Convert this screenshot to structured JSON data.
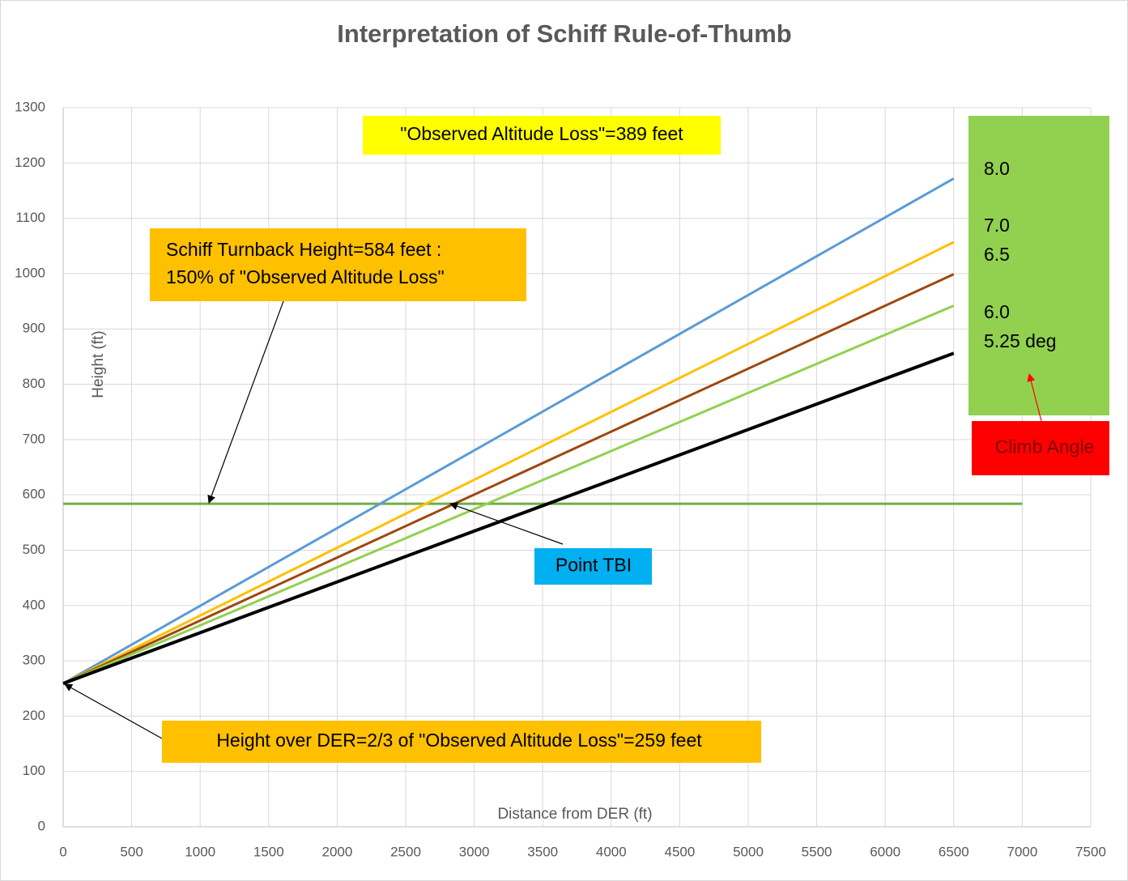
{
  "chart_data": {
    "type": "line",
    "title": "Interpretation of Schiff Rule-of-Thumb",
    "xlabel": "Distance from DER (ft)",
    "ylabel": "Height  (ft)",
    "xlim": [
      0,
      7500
    ],
    "ylim": [
      0,
      1300
    ],
    "xticks": [
      0,
      500,
      1000,
      1500,
      2000,
      2500,
      3000,
      3500,
      4000,
      4500,
      5000,
      5500,
      6000,
      6500,
      7000,
      7500
    ],
    "yticks": [
      0,
      100,
      200,
      300,
      400,
      500,
      600,
      700,
      800,
      900,
      1000,
      1100,
      1200,
      1300
    ],
    "grid": true,
    "legend_color": "#92d050",
    "series": [
      {
        "name": "8.0",
        "color": "#5b9bd5",
        "x": [
          0,
          6500
        ],
        "values": [
          259,
          1172
        ]
      },
      {
        "name": "7.0",
        "color": "#ffc000",
        "x": [
          0,
          6500
        ],
        "values": [
          259,
          1057
        ]
      },
      {
        "name": "6.5",
        "color": "#9e480e",
        "x": [
          0,
          6500
        ],
        "values": [
          259,
          999
        ]
      },
      {
        "name": "6.0",
        "color": "#92d050",
        "x": [
          0,
          6500
        ],
        "values": [
          259,
          942
        ]
      },
      {
        "name": "5.25 deg",
        "color": "#000000",
        "x": [
          0,
          6500
        ],
        "values": [
          259,
          856
        ]
      }
    ],
    "reference_line": {
      "color": "#70ad47",
      "x": [
        0,
        7000
      ],
      "values": [
        584,
        584
      ]
    },
    "annotations": [
      {
        "lines": [
          "\"Observed Altitude Loss\"=389 feet"
        ],
        "color": "#ffff00"
      },
      {
        "lines": [
          "Schiff Turnback Height=584 feet :",
          "150% of \"Observed Altitude Loss\""
        ],
        "color": "#ffc000"
      },
      {
        "lines": [
          "Point TBI"
        ],
        "color": "#00b0f0"
      },
      {
        "lines": [
          "Height over DER=2/3 of \"Observed Altitude Loss\"=259 feet"
        ],
        "color": "#ffc000"
      },
      {
        "lines": [
          "Climb Angle"
        ],
        "color": "#ff0000"
      }
    ]
  }
}
